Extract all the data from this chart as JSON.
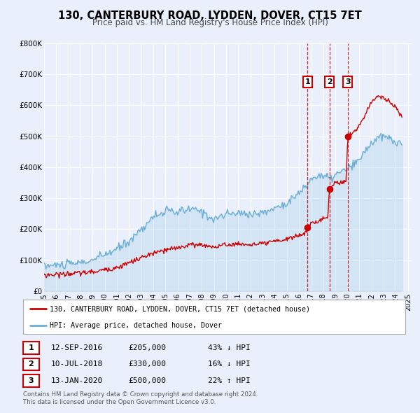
{
  "title": "130, CANTERBURY ROAD, LYDDEN, DOVER, CT15 7ET",
  "subtitle": "Price paid vs. HM Land Registry's House Price Index (HPI)",
  "legend_line1": "130, CANTERBURY ROAD, LYDDEN, DOVER, CT15 7ET (detached house)",
  "legend_line2": "HPI: Average price, detached house, Dover",
  "footnote_line1": "Contains HM Land Registry data © Crown copyright and database right 2024.",
  "footnote_line2": "This data is licensed under the Open Government Licence v3.0.",
  "transactions": [
    {
      "num": 1,
      "date": "12-SEP-2016",
      "date_val": 2016.71,
      "price": 205000,
      "price_str": "£205,000",
      "pct": "43% ↓ HPI"
    },
    {
      "num": 2,
      "date": "10-JUL-2018",
      "date_val": 2018.53,
      "price": 330000,
      "price_str": "£330,000",
      "pct": "16% ↓ HPI"
    },
    {
      "num": 3,
      "date": "13-JAN-2020",
      "date_val": 2020.04,
      "price": 500000,
      "price_str": "£500,000",
      "pct": "22% ↑ HPI"
    }
  ],
  "hpi_color": "#6baed6",
  "price_color": "#cc0000",
  "background_color": "#eaf0fb",
  "ylim": [
    0,
    800000
  ],
  "xlim_start": 1995.0,
  "xlim_end": 2025.3,
  "yticks": [
    0,
    100000,
    200000,
    300000,
    400000,
    500000,
    600000,
    700000,
    800000
  ],
  "ytick_labels": [
    "£0",
    "£100K",
    "£200K",
    "£300K",
    "£400K",
    "£500K",
    "£600K",
    "£700K",
    "£800K"
  ],
  "hpi_anchors_x": [
    1995.0,
    1996.0,
    1997.0,
    1998.0,
    1999.0,
    2000.0,
    2001.0,
    2002.0,
    2003.0,
    2004.0,
    2005.0,
    2006.0,
    2007.0,
    2008.0,
    2009.0,
    2010.0,
    2011.0,
    2012.0,
    2013.0,
    2014.0,
    2015.0,
    2016.0,
    2016.5,
    2017.0,
    2017.5,
    2018.0,
    2018.5,
    2019.0,
    2019.5,
    2020.0,
    2020.5,
    2021.0,
    2021.5,
    2022.0,
    2022.5,
    2023.0,
    2023.5,
    2024.0,
    2024.5
  ],
  "hpi_anchors_y": [
    82000,
    84000,
    87000,
    92000,
    100000,
    118000,
    135000,
    162000,
    200000,
    240000,
    258000,
    255000,
    265000,
    258000,
    232000,
    248000,
    252000,
    250000,
    252000,
    268000,
    285000,
    315000,
    335000,
    362000,
    372000,
    372000,
    362000,
    375000,
    385000,
    395000,
    405000,
    425000,
    455000,
    480000,
    492000,
    500000,
    492000,
    482000,
    472000
  ],
  "price_anchors_x": [
    1995.0,
    1997.0,
    1999.0,
    2001.0,
    2002.0,
    2003.0,
    2004.0,
    2005.0,
    2006.0,
    2007.0,
    2008.0,
    2009.0,
    2010.0,
    2011.0,
    2012.0,
    2013.0,
    2014.0,
    2015.0,
    2016.0,
    2016.6,
    2016.71,
    2017.0,
    2018.0,
    2018.4,
    2018.53,
    2018.8,
    2019.0,
    2019.5,
    2019.9,
    2020.04,
    2020.5,
    2021.0,
    2021.5,
    2022.0,
    2022.5,
    2023.0,
    2023.5,
    2024.0,
    2024.5
  ],
  "price_anchors_y": [
    52000,
    56000,
    62000,
    76000,
    92000,
    107000,
    122000,
    132000,
    140000,
    150000,
    150000,
    142000,
    150000,
    152000,
    150000,
    152000,
    160000,
    168000,
    180000,
    188000,
    205000,
    218000,
    232000,
    240000,
    330000,
    342000,
    348000,
    352000,
    358000,
    500000,
    512000,
    535000,
    572000,
    612000,
    632000,
    622000,
    612000,
    592000,
    562000
  ]
}
